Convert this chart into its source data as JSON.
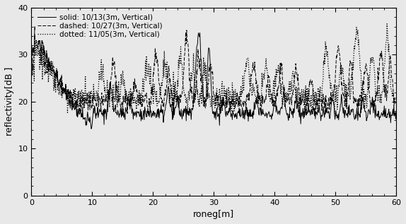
{
  "xlabel": "roneg[m]",
  "ylabel": "reflectivity[dB ]",
  "xlim": [
    0,
    60
  ],
  "ylim": [
    0,
    40
  ],
  "xticks": [
    0,
    10,
    20,
    30,
    40,
    50,
    60
  ],
  "yticks": [
    0,
    10,
    20,
    30,
    40
  ],
  "legend": [
    "solid: 10/13(3m, Vertical)",
    "dashed: 10/27(3m, Vertical)",
    "dotted: 11/05(3m, Vertical)"
  ],
  "background_color": "#e8e8e8",
  "line_color": "#000000",
  "figsize": [
    5.74,
    3.17
  ],
  "dpi": 100
}
